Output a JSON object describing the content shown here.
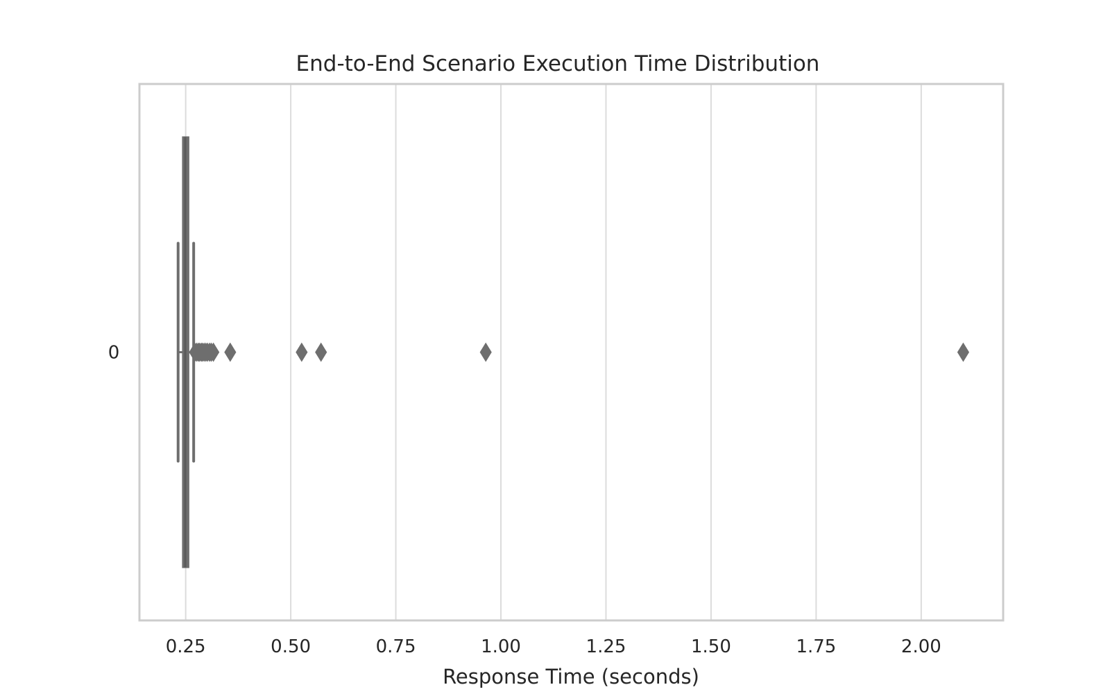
{
  "chart_data": {
    "type": "box",
    "orientation": "horizontal",
    "title": "End-to-End Scenario Execution Time Distribution",
    "xlabel": "Response Time (seconds)",
    "ylabel": "",
    "xlim": [
      0.14,
      2.195
    ],
    "xticks": [
      0.25,
      0.5,
      0.75,
      1.0,
      1.25,
      1.5,
      1.75,
      2.0
    ],
    "xtick_labels": [
      "0.25",
      "0.50",
      "0.75",
      "1.00",
      "1.25",
      "1.50",
      "1.75",
      "2.00"
    ],
    "grid": "vertical",
    "categories": [
      "0"
    ],
    "box": {
      "whisker_low": 0.232,
      "q1": 0.243,
      "median": 0.249,
      "q3": 0.257,
      "whisker_high": 0.269
    },
    "outliers": [
      0.272,
      0.276,
      0.28,
      0.283,
      0.287,
      0.29,
      0.294,
      0.298,
      0.302,
      0.307,
      0.311,
      0.316,
      0.356,
      0.526,
      0.572,
      0.964,
      2.1
    ],
    "colors": {
      "box": "#6e6e6e",
      "grid": "#dcdcdc",
      "frame": "#cccccc",
      "text": "#262626"
    }
  }
}
